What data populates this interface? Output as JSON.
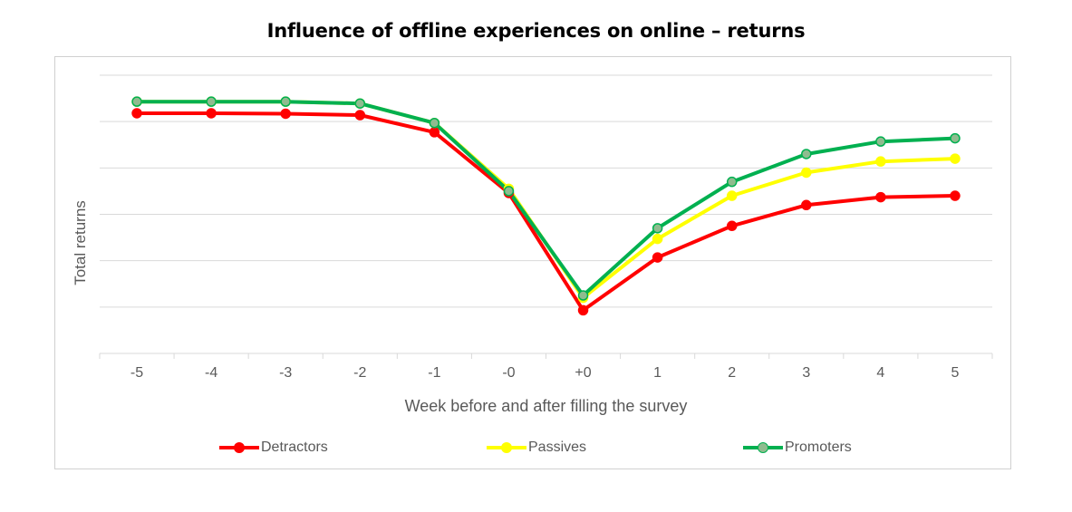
{
  "chart_data": {
    "type": "line",
    "title": "Influence of offline experiences on online – returns",
    "xlabel": "Week before and after filling the survey",
    "ylabel": "Total returns",
    "categories": [
      "-5",
      "-4",
      "-3",
      "-2",
      "-1",
      "-0",
      "+0",
      "1",
      "2",
      "3",
      "4",
      "5"
    ],
    "ylim": [
      0,
      6
    ],
    "y_tick_labels_shown": false,
    "grid": true,
    "legend_position": "bottom",
    "series": [
      {
        "name": "Detractors",
        "color": "#ff0000",
        "marker_fill": "#ff0000",
        "values": [
          5.18,
          5.18,
          5.17,
          5.14,
          4.77,
          3.46,
          0.93,
          2.07,
          2.75,
          3.2,
          3.37,
          3.4
        ]
      },
      {
        "name": "Passives",
        "color": "#ffff00",
        "marker_fill": "#ffff00",
        "values": [
          5.43,
          5.43,
          5.43,
          5.39,
          4.97,
          3.55,
          1.2,
          2.47,
          3.4,
          3.9,
          4.14,
          4.2
        ]
      },
      {
        "name": "Promoters",
        "color": "#00b050",
        "marker_fill": "#8fbc8f",
        "values": [
          5.43,
          5.43,
          5.43,
          5.39,
          4.97,
          3.5,
          1.25,
          2.7,
          3.7,
          4.3,
          4.57,
          4.64
        ]
      }
    ]
  }
}
